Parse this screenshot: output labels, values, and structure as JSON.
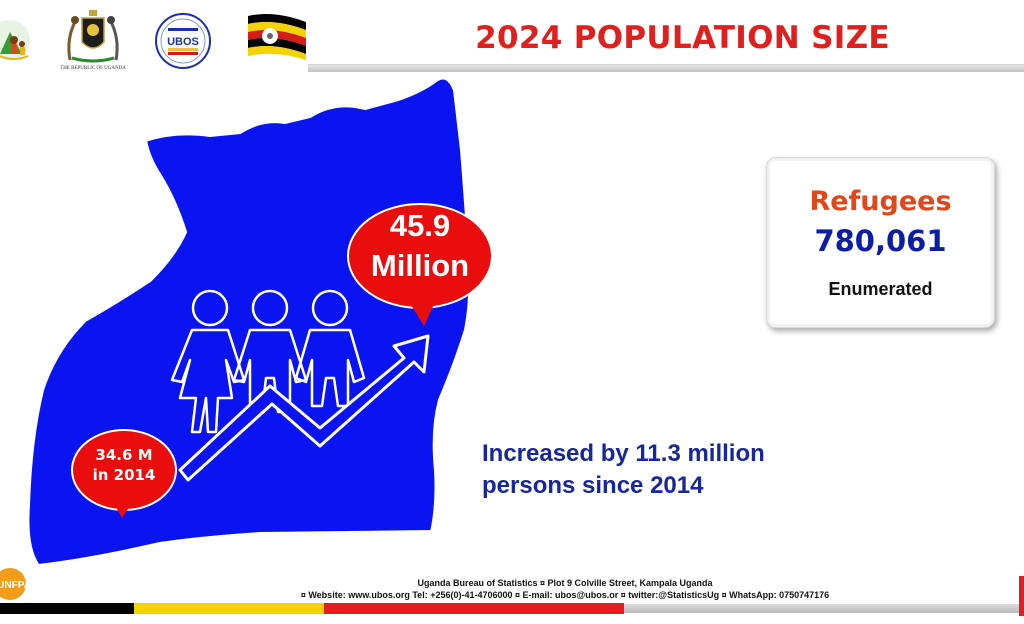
{
  "header": {
    "title": "2024 POPULATION SIZE",
    "arms_caption": "THE REPUBLIC OF UGANDA",
    "ubos_logo_text": "UBOS"
  },
  "map": {
    "population_2024": {
      "line1": "45.9",
      "line2": "Million"
    },
    "population_2014": {
      "line1": "34.6 M",
      "line2": "in 2014"
    }
  },
  "refugees": {
    "heading": "Refugees",
    "value": "780,061",
    "caption": "Enumerated"
  },
  "increase": {
    "line1": "Increased by 11.3 million",
    "line2": "persons since 2014"
  },
  "footer": {
    "line1": "Uganda Bureau of Statistics ¤ Plot 9 Colville Street, Kampala Uganda",
    "line2": "¤ Website: www.ubos.org Tel: +256(0)-41-4706000 ¤ E-mail: ubos@ubos.or ¤ twitter:@StatisticsUg ¤ WhatsApp: 0750747176"
  },
  "unfpa_text": "UNFPA",
  "colors": {
    "title_red": "#e0201e",
    "map_blue": "#0a14f0",
    "bubble_red": "#ea0d0d",
    "refugee_orange": "#e2471b",
    "value_blue": "#0d1ea6",
    "text_navy": "#16269b"
  }
}
